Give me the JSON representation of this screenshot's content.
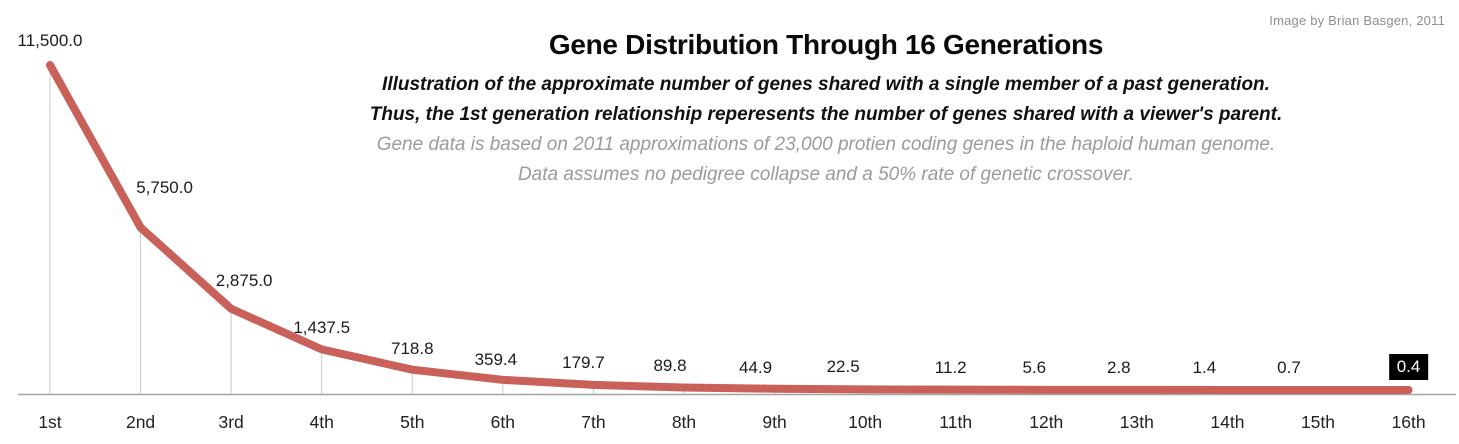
{
  "credit": "Image by Brian Basgen, 2011",
  "header": {
    "title": "Gene Distribution Through 16 Generations",
    "subtitle_lines": [
      "Illustration of the approximate number of genes shared with a single member of a past generation.",
      "Thus, the 1st generation relationship reperesents the number of genes shared with a viewer's parent."
    ],
    "note_lines": [
      "Gene data is based on 2011 approximations of 23,000 protien coding genes in the haploid human genome.",
      "Data assumes no pedigree collapse and a 50% rate of genetic crossover."
    ]
  },
  "chart_data": {
    "type": "line",
    "title": "Gene Distribution Through 16 Generations",
    "categories": [
      "1st",
      "2nd",
      "3rd",
      "4th",
      "5th",
      "6th",
      "7th",
      "8th",
      "9th",
      "10th",
      "11th",
      "12th",
      "13th",
      "14th",
      "15th",
      "16th"
    ],
    "values": [
      11500,
      5750,
      2875,
      1437.5,
      718.8,
      359.4,
      179.7,
      89.8,
      44.9,
      22.5,
      11.2,
      5.6,
      2.8,
      1.4,
      0.7,
      0.4
    ],
    "point_labels": [
      "11,500.0",
      "5,750.0",
      "2,875.0",
      "1,437.5",
      "718.8",
      "359.4",
      "179.7",
      "89.8",
      "44.9",
      "22.5",
      "11.2",
      "5.6",
      "2.8",
      "1.4",
      "0.7",
      "0.4"
    ],
    "ylim": [
      0,
      11500
    ],
    "grid": false,
    "legend": "none",
    "droplines": true,
    "colors": {
      "series": "#c9615a",
      "dropline": "#c9c9c9",
      "axis": "#a3a3a3",
      "label_text": "#1c1c1c",
      "highlight_bg": "#000000",
      "highlight_text": "#ffffff"
    },
    "highlight_last_label": true
  }
}
